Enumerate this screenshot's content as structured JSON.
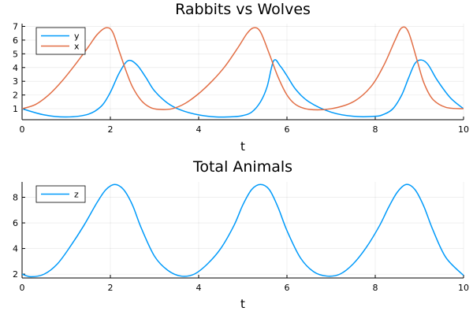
{
  "chart_data": [
    {
      "type": "line",
      "title": "Rabbits vs Wolves",
      "xlabel": "t",
      "ylabel": "",
      "xlim": [
        0,
        10
      ],
      "ylim": [
        0.2,
        7.2
      ],
      "xticks": [
        0,
        2,
        4,
        6,
        8,
        10
      ],
      "yticks": [
        1,
        2,
        3,
        4,
        5,
        6,
        7
      ],
      "grid": true,
      "legend": "top-left",
      "series": [
        {
          "name": "y",
          "color": "#009AFA",
          "x": [
            0,
            0.5,
            1,
            1.5,
            1.8,
            2.0,
            2.2,
            2.4,
            2.6,
            2.8,
            3.0,
            3.3,
            3.6,
            4.0,
            4.4,
            4.8,
            5.0,
            5.2,
            5.4,
            5.55,
            5.7,
            5.85,
            6.0,
            6.2,
            6.5,
            7.0,
            7.5,
            8.0,
            8.2,
            8.4,
            8.6,
            8.75,
            8.9,
            9.05,
            9.2,
            9.4,
            9.7,
            10
          ],
          "values": [
            1.0,
            0.55,
            0.4,
            0.6,
            1.2,
            2.2,
            3.6,
            4.5,
            4.2,
            3.3,
            2.3,
            1.4,
            0.9,
            0.55,
            0.4,
            0.42,
            0.5,
            0.75,
            1.5,
            2.6,
            4.5,
            4.1,
            3.4,
            2.4,
            1.5,
            0.75,
            0.45,
            0.45,
            0.6,
            1.0,
            2.0,
            3.2,
            4.3,
            4.55,
            4.2,
            3.1,
            1.8,
            1.0
          ]
        },
        {
          "name": "x",
          "color": "#E26F46",
          "x": [
            0,
            0.3,
            0.6,
            0.9,
            1.2,
            1.5,
            1.7,
            1.9,
            2.05,
            2.2,
            2.35,
            2.5,
            2.7,
            2.9,
            3.1,
            3.4,
            3.7,
            4.0,
            4.3,
            4.6,
            4.9,
            5.1,
            5.25,
            5.4,
            5.6,
            5.8,
            6.0,
            6.2,
            6.5,
            7.0,
            7.5,
            7.9,
            8.2,
            8.45,
            8.6,
            8.75,
            8.95,
            9.1,
            9.3,
            9.6,
            10
          ],
          "values": [
            1.0,
            1.3,
            2.0,
            3.0,
            4.2,
            5.5,
            6.4,
            6.9,
            6.6,
            5.2,
            3.8,
            2.6,
            1.6,
            1.1,
            0.95,
            1.0,
            1.4,
            2.1,
            3.0,
            4.1,
            5.5,
            6.5,
            6.9,
            6.6,
            5.0,
            3.3,
            2.0,
            1.3,
            0.95,
            1.0,
            1.5,
            2.6,
            4.2,
            6.0,
            6.9,
            6.6,
            4.5,
            2.9,
            1.7,
            1.1,
            1.0
          ]
        }
      ]
    },
    {
      "type": "line",
      "title": "Total Animals",
      "xlabel": "t",
      "ylabel": "",
      "xlim": [
        0,
        10
      ],
      "ylim": [
        1.7,
        9.2
      ],
      "xticks": [
        0,
        2,
        4,
        6,
        8,
        10
      ],
      "yticks": [
        2,
        4,
        6,
        8
      ],
      "grid": true,
      "legend": "top-left",
      "series": [
        {
          "name": "z",
          "color": "#009AFA",
          "x": [
            0,
            0.2,
            0.5,
            0.8,
            1.1,
            1.4,
            1.7,
            1.9,
            2.1,
            2.3,
            2.5,
            2.7,
            3.0,
            3.3,
            3.6,
            3.9,
            4.2,
            4.5,
            4.8,
            5.0,
            5.2,
            5.4,
            5.6,
            5.8,
            6.0,
            6.3,
            6.6,
            6.9,
            7.2,
            7.5,
            7.8,
            8.1,
            8.3,
            8.5,
            8.7,
            8.9,
            9.1,
            9.3,
            9.6,
            10
          ],
          "values": [
            2.0,
            1.8,
            2.0,
            2.8,
            4.2,
            5.8,
            7.6,
            8.6,
            9.0,
            8.6,
            7.4,
            5.6,
            3.4,
            2.3,
            1.85,
            2.0,
            2.8,
            4.0,
            5.8,
            7.4,
            8.6,
            9.0,
            8.6,
            7.2,
            5.4,
            3.3,
            2.2,
            1.85,
            2.0,
            2.8,
            4.1,
            5.8,
            7.2,
            8.4,
            9.0,
            8.6,
            7.3,
            5.5,
            3.3,
            1.9
          ]
        }
      ]
    }
  ]
}
